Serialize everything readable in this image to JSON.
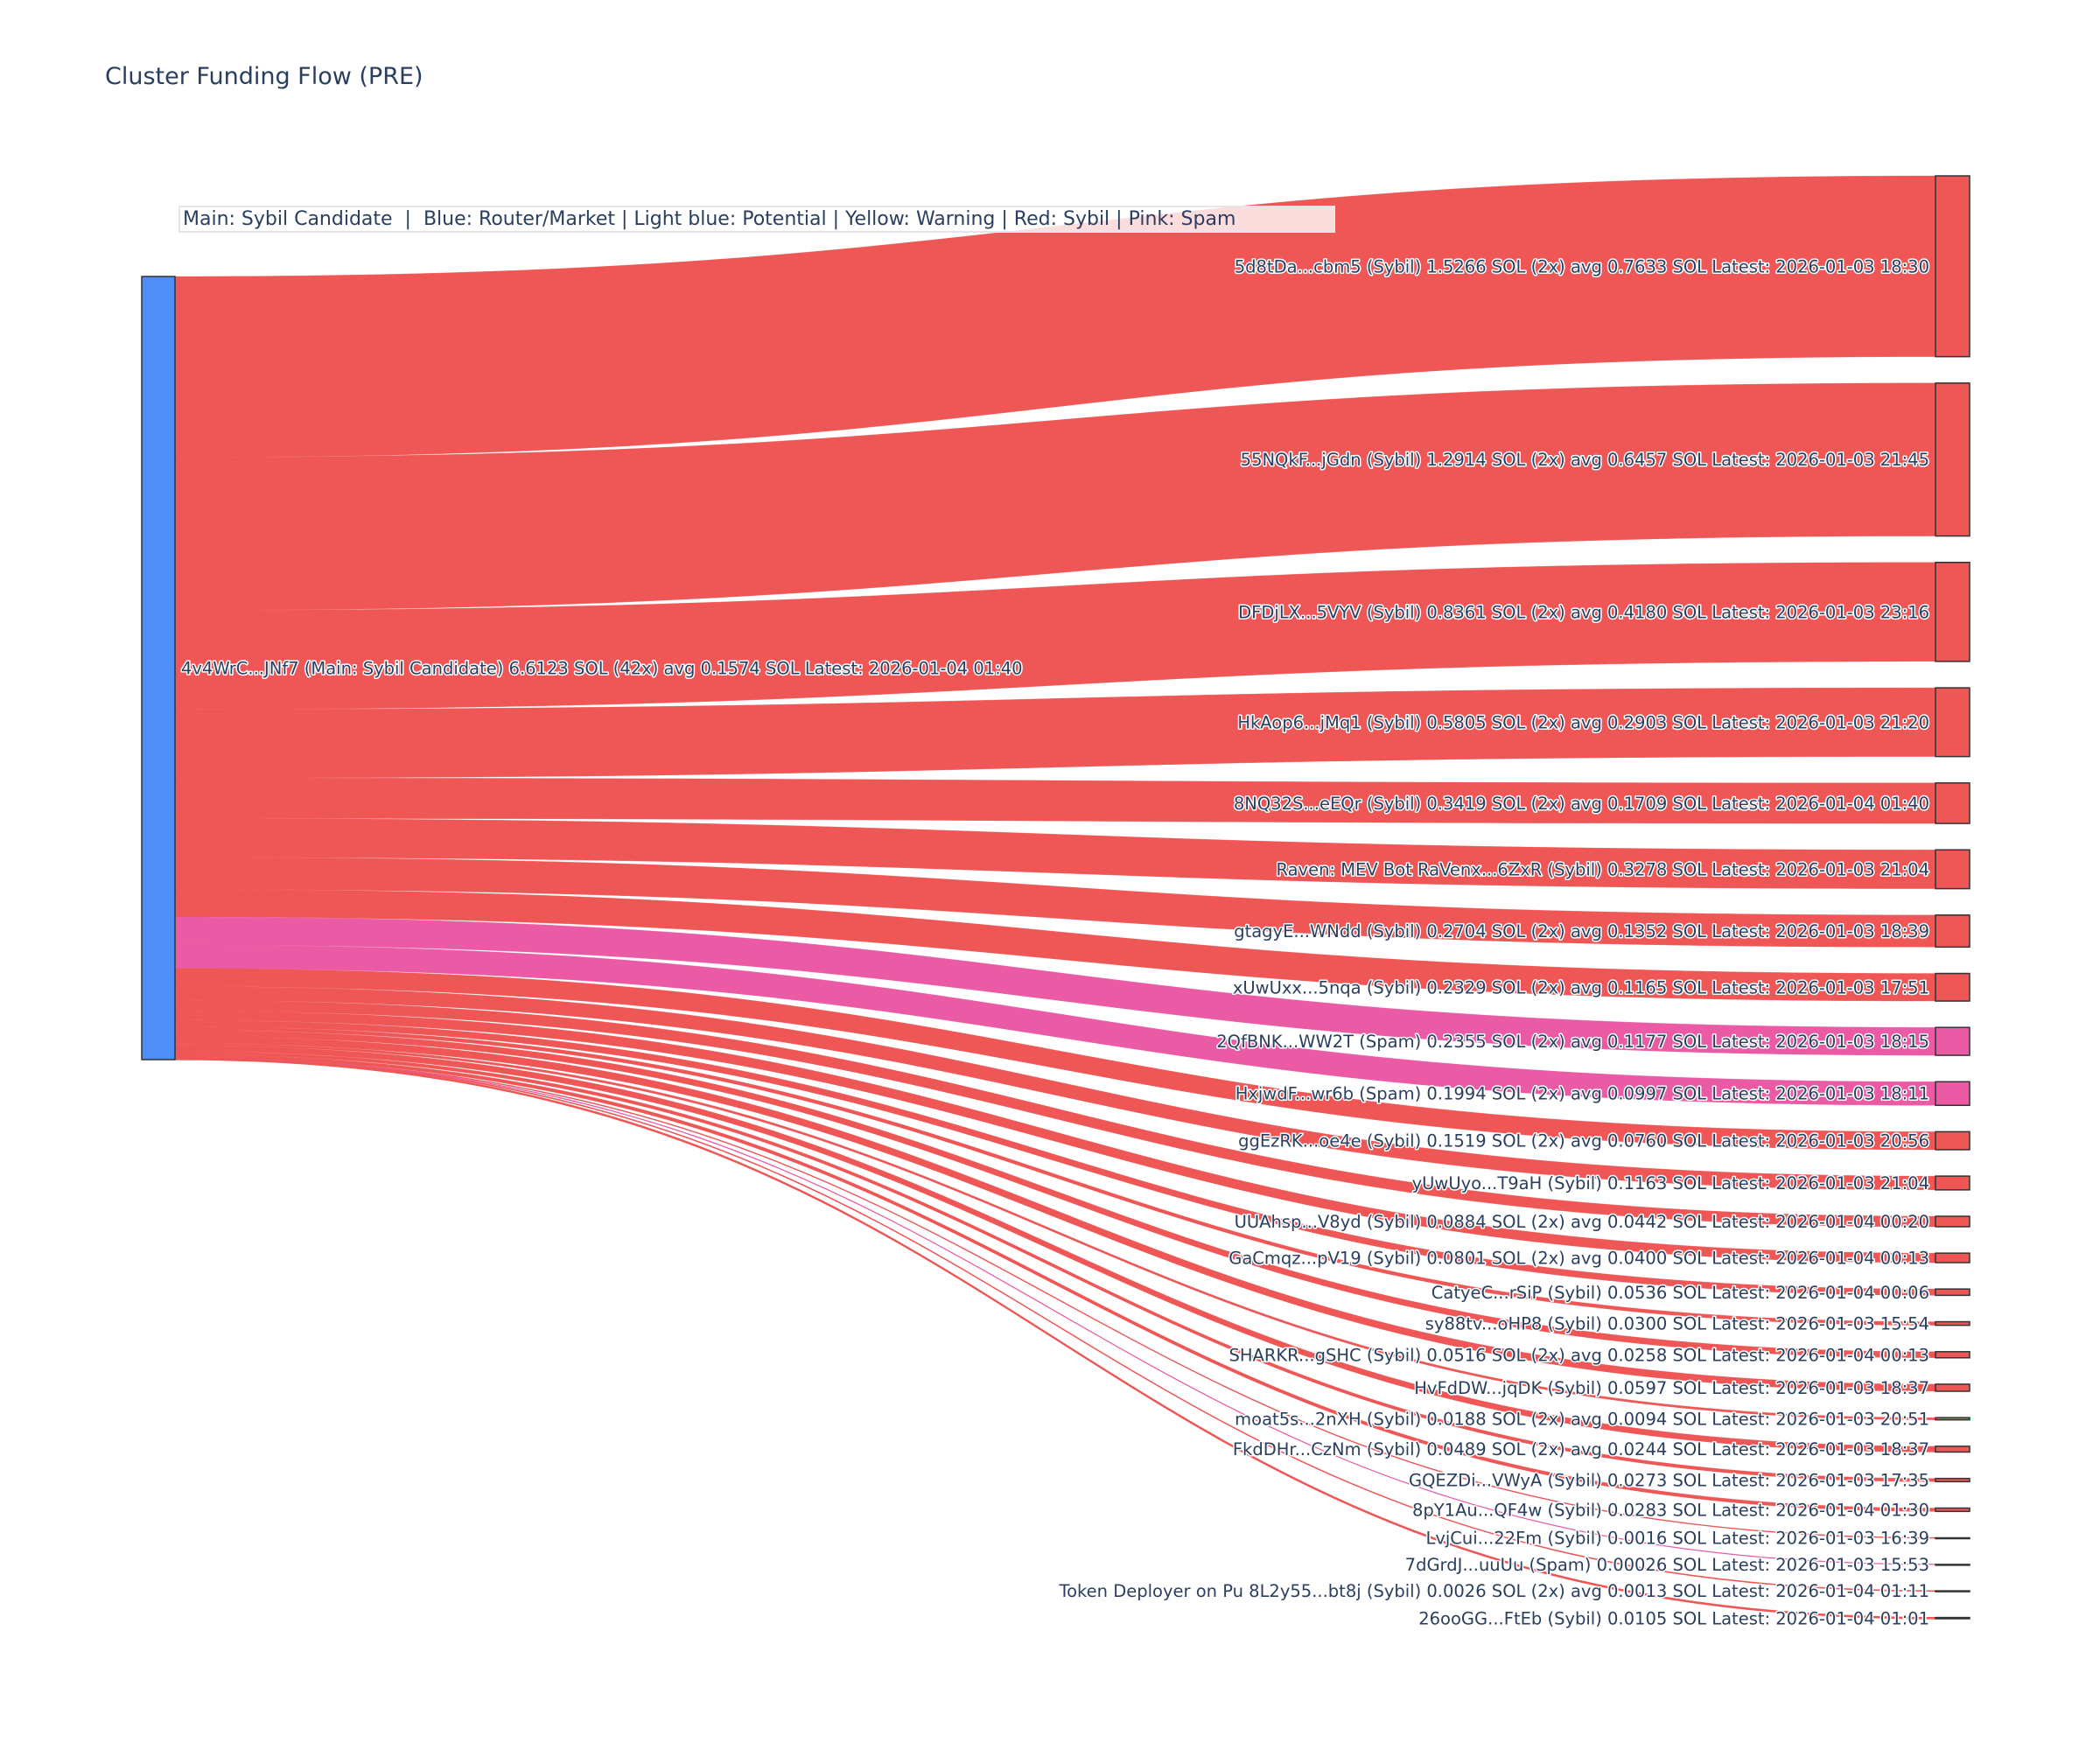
{
  "title": "Cluster Funding Flow (PRE)",
  "legend_text": "Main: Sybil Candidate  |  Blue: Router/Market | Light blue: Potential | Yellow: Warning | Red: Sybil | Pink: Spam",
  "colors": {
    "main": "#4f8ef7",
    "sybil": "#ef5656",
    "spam": "#ea5aa5",
    "node_border": "#333333"
  },
  "chart_data": {
    "type": "sankey",
    "title": "Cluster Funding Flow (PRE)",
    "source": {
      "label": "4v4WrC...JNf7 (Main: Sybil Candidate) 6.6123 SOL (42x) avg 0.1574 SOL Latest: 2026-01-04 01:40",
      "value": 6.6123,
      "category": "main"
    },
    "targets": [
      {
        "label": "5d8tDa...cbm5 (Sybil) 1.5266 SOL (2x) avg 0.7633 SOL Latest: 2026-01-03 18:30",
        "value": 1.5266,
        "category": "sybil"
      },
      {
        "label": "55NQkF...jGdn (Sybil) 1.2914 SOL (2x) avg 0.6457 SOL Latest: 2026-01-03 21:45",
        "value": 1.2914,
        "category": "sybil"
      },
      {
        "label": "DFDjLX...5VYV (Sybil) 0.8361 SOL (2x) avg 0.4180 SOL Latest: 2026-01-03 23:16",
        "value": 0.8361,
        "category": "sybil"
      },
      {
        "label": "HkAop6...jMq1 (Sybil) 0.5805 SOL (2x) avg 0.2903 SOL Latest: 2026-01-03 21:20",
        "value": 0.5805,
        "category": "sybil"
      },
      {
        "label": "8NQ32S...eEQr (Sybil) 0.3419 SOL (2x) avg 0.1709 SOL Latest: 2026-01-04 01:40",
        "value": 0.3419,
        "category": "sybil"
      },
      {
        "label": "Raven: MEV Bot RaVenx...6ZxR (Sybil) 0.3278 SOL Latest: 2026-01-03 21:04",
        "value": 0.3278,
        "category": "sybil"
      },
      {
        "label": "gtagyE...WNdd (Sybil) 0.2704 SOL (2x) avg 0.1352 SOL Latest: 2026-01-03 18:39",
        "value": 0.2704,
        "category": "sybil"
      },
      {
        "label": "xUwUxx...5nqa (Sybil) 0.2329 SOL (2x) avg 0.1165 SOL Latest: 2026-01-03 17:51",
        "value": 0.2329,
        "category": "sybil"
      },
      {
        "label": "2QfBNK...WW2T (Spam) 0.2355 SOL (2x) avg 0.1177 SOL Latest: 2026-01-03 18:15",
        "value": 0.2355,
        "category": "spam"
      },
      {
        "label": "HxjwdF...wr6b (Spam) 0.1994 SOL (2x) avg 0.0997 SOL Latest: 2026-01-03 18:11",
        "value": 0.1994,
        "category": "spam"
      },
      {
        "label": "ggEzRK...oe4e (Sybil) 0.1519 SOL (2x) avg 0.0760 SOL Latest: 2026-01-03 20:56",
        "value": 0.1519,
        "category": "sybil"
      },
      {
        "label": "yUwUyo...T9aH (Sybil) 0.1163 SOL Latest: 2026-01-03 21:04",
        "value": 0.1163,
        "category": "sybil"
      },
      {
        "label": "UUAhsp...V8yd (Sybil) 0.0884 SOL (2x) avg 0.0442 SOL Latest: 2026-01-04 00:20",
        "value": 0.0884,
        "category": "sybil"
      },
      {
        "label": "GaCmqz...pV19 (Sybil) 0.0801 SOL (2x) avg 0.0400 SOL Latest: 2026-01-04 00:13",
        "value": 0.0801,
        "category": "sybil"
      },
      {
        "label": "CatyeC...rSiP (Sybil) 0.0536 SOL Latest: 2026-01-04 00:06",
        "value": 0.0536,
        "category": "sybil"
      },
      {
        "label": "sy88tv...oHP8 (Sybil) 0.0300 SOL Latest: 2026-01-03 15:54",
        "value": 0.03,
        "category": "sybil"
      },
      {
        "label": "SHARKR...gSHC (Sybil) 0.0516 SOL (2x) avg 0.0258 SOL Latest: 2026-01-04 00:13",
        "value": 0.0516,
        "category": "sybil"
      },
      {
        "label": "HvFdDW...jqDK (Sybil) 0.0597 SOL Latest: 2026-01-03 18:37",
        "value": 0.0597,
        "category": "sybil"
      },
      {
        "label": "moat5s...2nXH (Sybil) 0.0188 SOL (2x) avg 0.0094 SOL Latest: 2026-01-03 20:51",
        "value": 0.0188,
        "category": "sybil"
      },
      {
        "label": "FkdDHr...CzNm (Sybil) 0.0489 SOL (2x) avg 0.0244 SOL Latest: 2026-01-03 18:37",
        "value": 0.0489,
        "category": "sybil"
      },
      {
        "label": "GQEZDi...VWyA (Sybil) 0.0273 SOL Latest: 2026-01-03 17:35",
        "value": 0.0273,
        "category": "sybil"
      },
      {
        "label": "8pY1Au...QF4w (Sybil) 0.0283 SOL Latest: 2026-01-04 01:30",
        "value": 0.0283,
        "category": "sybil"
      },
      {
        "label": "LvjCui...22Fm (Sybil) 0.0016 SOL Latest: 2026-01-03 16:39",
        "value": 0.0016,
        "category": "sybil"
      },
      {
        "label": "7dGrdJ...uuUu (Spam) 0.00026 SOL Latest: 2026-01-03 15:53",
        "value": 0.00026,
        "category": "spam"
      },
      {
        "label": "Token Deployer on Pu 8L2y55...bt8j (Sybil) 0.0026 SOL (2x) avg 0.0013 SOL Latest: 2026-01-04 01:11",
        "value": 0.0026,
        "category": "sybil"
      },
      {
        "label": "26ooGG...FtEb (Sybil) 0.0105 SOL Latest: 2026-01-04 01:01",
        "value": 0.0105,
        "category": "sybil"
      }
    ]
  }
}
